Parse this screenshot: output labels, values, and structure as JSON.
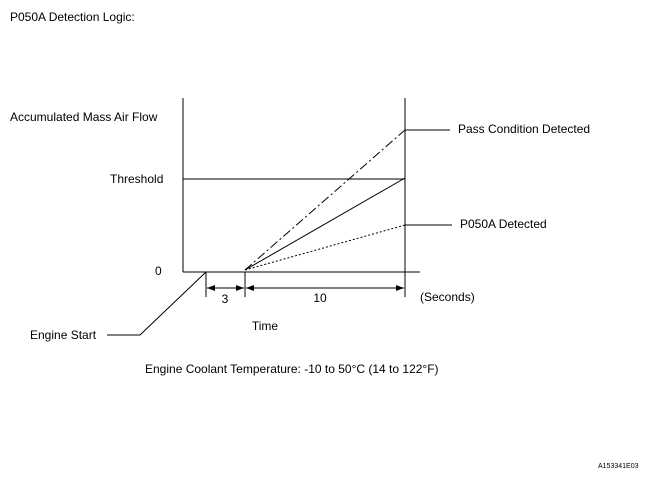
{
  "title": "P050A Detection Logic:",
  "diagram": {
    "y_axis_label": "Accumulated Mass Air Flow",
    "threshold_label": "Threshold",
    "origin_label": "0",
    "pass_label": "Pass Condition Detected",
    "fail_label": "P050A Detected",
    "interval_1": "3",
    "interval_2": "10",
    "unit_label": "(Seconds)",
    "x_axis_label": "Time",
    "engine_start_label": "Engine Start",
    "condition": "Engine Coolant Temperature: -10 to 50°C (14 to 122°F)"
  },
  "figure_id": "A153341E03"
}
